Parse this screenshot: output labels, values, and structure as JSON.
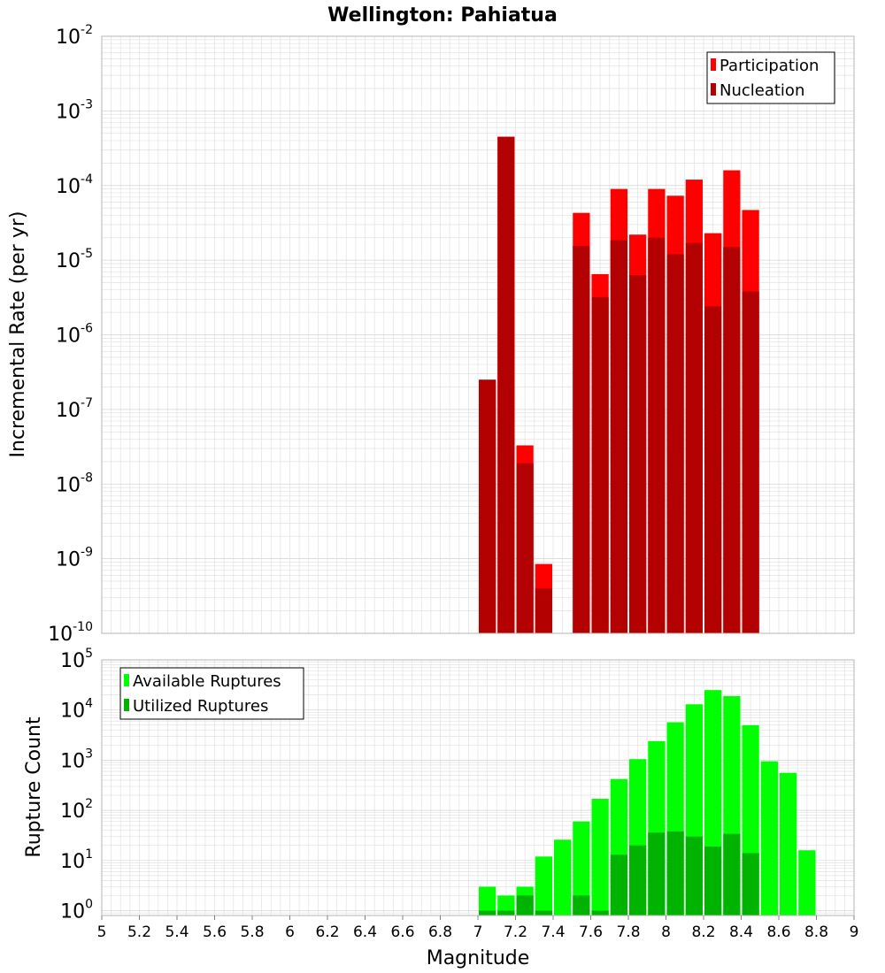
{
  "title": "Wellington: Pahiatua",
  "colors": {
    "participation": "#ff0000",
    "nucleation": "#b30000",
    "available": "#00ff00",
    "utilized": "#00b300",
    "grid": "#e2e2e2",
    "plot_border": "#b5b5b5"
  },
  "chart_data": [
    {
      "type": "bar",
      "name": "rate-panel",
      "ylabel": "Incremental Rate (per yr)",
      "yscale": "log",
      "ylim": [
        1e-10,
        0.01
      ],
      "xlim": [
        5,
        9
      ],
      "bar_width": 0.1,
      "legend_position": "top-right",
      "series": [
        {
          "name": "Participation",
          "color_key": "participation",
          "x": [
            7.0,
            7.1,
            7.2,
            7.3,
            7.5,
            7.6,
            7.7,
            7.8,
            7.9,
            8.0,
            8.1,
            8.2,
            8.3,
            8.4
          ],
          "values": [
            2.5e-07,
            0.00045,
            3.3e-08,
            8.5e-10,
            4.3e-05,
            6.5e-06,
            9e-05,
            2.2e-05,
            9e-05,
            7.3e-05,
            0.00012,
            2.3e-05,
            0.00016,
            4.7e-05
          ]
        },
        {
          "name": "Nucleation",
          "color_key": "nucleation",
          "x": [
            7.0,
            7.1,
            7.2,
            7.3,
            7.5,
            7.6,
            7.7,
            7.8,
            7.9,
            8.0,
            8.1,
            8.2,
            8.3,
            8.4
          ],
          "values": [
            2.5e-07,
            0.00045,
            1.9e-08,
            4e-10,
            1.55e-05,
            3.2e-06,
            1.85e-05,
            6.3e-06,
            2e-05,
            1.2e-05,
            1.7e-05,
            2.4e-06,
            1.5e-05,
            3.8e-06
          ]
        }
      ]
    },
    {
      "type": "bar",
      "name": "count-panel",
      "xlabel": "Magnitude",
      "ylabel": "Rupture Count",
      "yscale": "log",
      "ylim": [
        0.8,
        100000
      ],
      "xlim": [
        5,
        9
      ],
      "bar_width": 0.1,
      "legend_position": "top-left",
      "x_ticks": [
        "5",
        "5.2",
        "5.4",
        "5.6",
        "5.8",
        "6",
        "6.2",
        "6.4",
        "6.6",
        "6.8",
        "7",
        "7.2",
        "7.4",
        "7.6",
        "7.8",
        "8",
        "8.2",
        "8.4",
        "8.6",
        "8.8",
        "9"
      ],
      "series": [
        {
          "name": "Available Ruptures",
          "color_key": "available",
          "x": [
            7.0,
            7.1,
            7.2,
            7.3,
            7.4,
            7.5,
            7.6,
            7.7,
            7.8,
            7.9,
            8.0,
            8.1,
            8.2,
            8.3,
            8.4,
            8.5,
            8.6,
            8.7
          ],
          "values": [
            3,
            2,
            3,
            12,
            26,
            60,
            170,
            420,
            1050,
            2400,
            5700,
            13000,
            25000,
            19000,
            5000,
            950,
            560,
            16
          ]
        },
        {
          "name": "Utilized Ruptures",
          "color_key": "utilized",
          "x": [
            7.0,
            7.1,
            7.2,
            7.3,
            7.5,
            7.6,
            7.7,
            7.8,
            7.9,
            8.0,
            8.1,
            8.2,
            8.3,
            8.4
          ],
          "values": [
            1,
            1,
            2,
            1,
            2,
            1,
            13,
            20,
            36,
            38,
            30,
            19,
            34,
            14
          ]
        }
      ]
    }
  ]
}
